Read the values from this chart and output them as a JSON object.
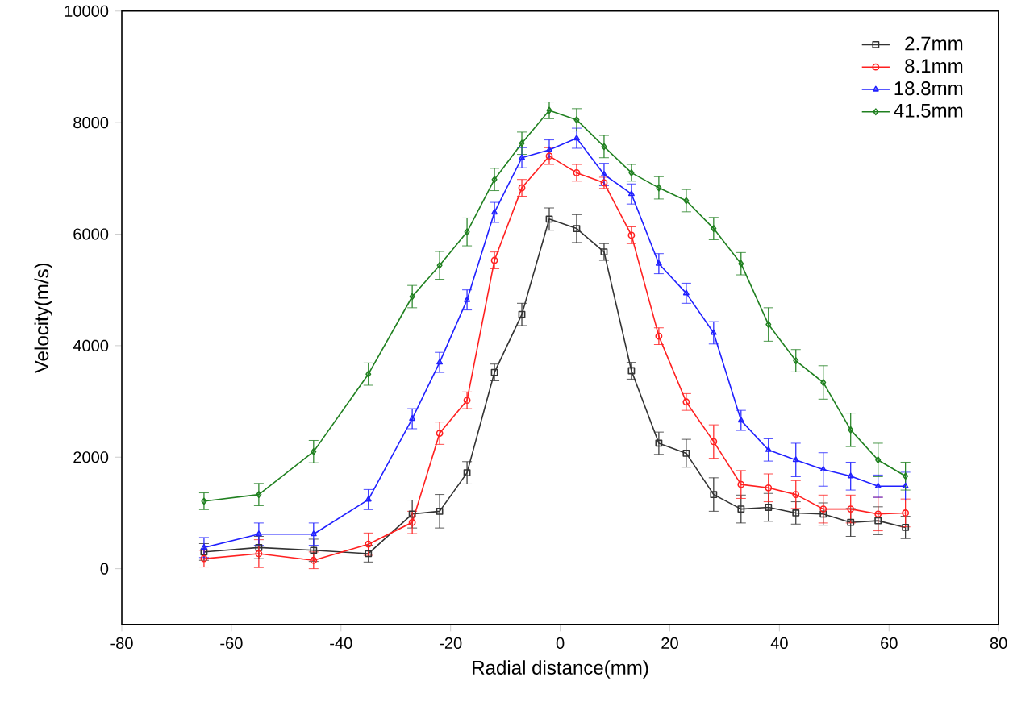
{
  "chart_data": {
    "type": "line",
    "xlabel": "Radial distance(mm)",
    "ylabel": "Velocity(m/s)",
    "x": [
      -65,
      -55,
      -45,
      -35,
      -27,
      -22,
      -17,
      -12,
      -7,
      -2,
      3,
      8,
      13,
      18,
      23,
      28,
      33,
      38,
      43,
      48,
      53,
      58,
      63
    ],
    "series": [
      {
        "name": "2.7mm",
        "color": "#333333",
        "marker": "square",
        "values": [
          300,
          380,
          330,
          270,
          980,
          1030,
          1720,
          3520,
          4560,
          6270,
          6100,
          5680,
          3550,
          2250,
          2070,
          1330,
          1070,
          1100,
          1000,
          980,
          830,
          860,
          740
        ],
        "errors": [
          150,
          200,
          200,
          150,
          250,
          300,
          200,
          150,
          200,
          200,
          250,
          150,
          150,
          200,
          250,
          300,
          250,
          250,
          200,
          200,
          250,
          250,
          200
        ]
      },
      {
        "name": "8.1mm",
        "color": "#ff2020",
        "marker": "circle",
        "values": [
          180,
          270,
          150,
          440,
          830,
          2430,
          3020,
          5530,
          6830,
          7400,
          7100,
          6920,
          5980,
          4170,
          2990,
          2280,
          1510,
          1450,
          1330,
          1070,
          1070,
          980,
          1000
        ],
        "errors": [
          150,
          250,
          150,
          200,
          200,
          200,
          150,
          150,
          150,
          150,
          150,
          100,
          150,
          150,
          150,
          300,
          250,
          250,
          250,
          250,
          250,
          300,
          250
        ]
      },
      {
        "name": "18.8mm",
        "color": "#2020ff",
        "marker": "triangle",
        "values": [
          380,
          620,
          620,
          1240,
          2690,
          3700,
          4820,
          6390,
          7370,
          7510,
          7720,
          7070,
          6720,
          5470,
          4940,
          4230,
          2660,
          2130,
          1950,
          1780,
          1660,
          1480,
          1480
        ],
        "errors": [
          180,
          200,
          200,
          180,
          180,
          180,
          180,
          180,
          180,
          180,
          180,
          200,
          180,
          180,
          180,
          200,
          180,
          200,
          300,
          300,
          250,
          200,
          250
        ]
      },
      {
        "name": "41.5mm",
        "color": "#208020",
        "marker": "diamond",
        "values": [
          1210,
          1330,
          2100,
          3490,
          4880,
          5440,
          6040,
          6980,
          7630,
          8220,
          8050,
          7570,
          7100,
          6830,
          6600,
          6100,
          5470,
          4380,
          3730,
          3340,
          2490,
          1950,
          1660
        ],
        "errors": [
          150,
          200,
          200,
          200,
          200,
          250,
          250,
          200,
          200,
          150,
          200,
          200,
          150,
          200,
          200,
          200,
          200,
          300,
          200,
          300,
          300,
          300,
          250
        ]
      }
    ],
    "xlim": [
      -80,
      80
    ],
    "ylim": [
      -1000,
      10000
    ],
    "xticks": [
      -80,
      -60,
      -40,
      -20,
      0,
      20,
      40,
      60,
      80
    ],
    "yticks": [
      0,
      2000,
      4000,
      6000,
      8000,
      10000
    ],
    "grid": false,
    "legend": "top right",
    "line_style": "solid"
  }
}
